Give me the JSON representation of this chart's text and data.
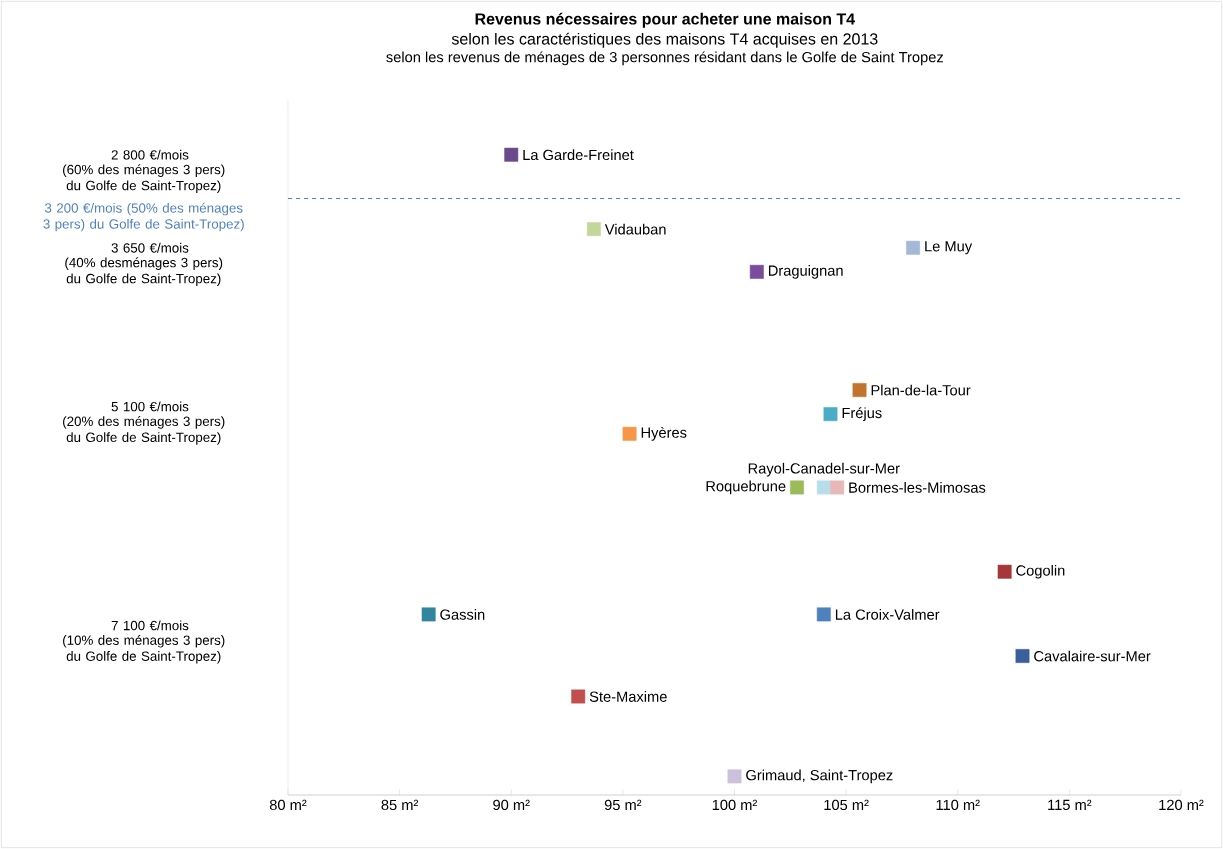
{
  "chart_data": {
    "type": "scatter",
    "title": "Revenus nécessaires pour acheter une maison T4",
    "subtitle": "selon les caractéristiques des maisons T4 acquises en 2013",
    "annotations": [
      "selon les revenus de ménages de 3 personnes résidant dans le Golfe de Saint Tropez",
      "(60% des ménages 3 pers) du Golfe de Saint-Tropez)",
      "(40% desménages 3 pers) du Golfe de Saint-Tropez)",
      "(20% des ménages 3 pers) du Golfe de Saint-Tropez)",
      "(10% des ménages 3 pers) du Golfe de Saint-Tropez)"
    ],
    "marker": "square",
    "xlim": [
      80,
      120
    ],
    "xticks": [
      {
        "value": 80,
        "label": "80 m²"
      },
      {
        "value": 85,
        "label": "85 m²"
      },
      {
        "value": 90,
        "label": "90 m²"
      },
      {
        "value": 95,
        "label": "95 m²"
      },
      {
        "value": 100,
        "label": "100 m²"
      },
      {
        "value": 105,
        "label": "105 m²"
      },
      {
        "value": 110,
        "label": "110 m²"
      },
      {
        "value": 115,
        "label": "115 m²"
      },
      {
        "value": 120,
        "label": "120 m²"
      }
    ],
    "ylim": [
      8650,
      2300
    ],
    "yticks": [
      {
        "value": 2800,
        "label": "2 800 €/mois"
      },
      {
        "value": 3650,
        "label": "3 650 €/mois"
      },
      {
        "value": 5100,
        "label": "5 100 €/mois"
      },
      {
        "value": 7100,
        "label": "7 100 €/mois"
      }
    ],
    "ref_lines": [
      {
        "axis": "y",
        "value": 3200,
        "label": "3 200 €/mois (50% des ménages 3 pers) du Golfe de Saint-Tropez)",
        "color": "#4f81bd",
        "line_style": "dashed"
      }
    ],
    "series": [
      {
        "name": "La Garde-Freinet",
        "color": "#6a4a8c",
        "x": [
          90
        ],
        "values": [
          2800
        ]
      },
      {
        "name": "Vidauban",
        "color": "#c4d79b",
        "x": [
          93.7
        ],
        "values": [
          3480
        ]
      },
      {
        "name": "Le Muy",
        "color": "#a5b8d8",
        "x": [
          108
        ],
        "values": [
          3650
        ]
      },
      {
        "name": "Draguignan",
        "color": "#7b4c9b",
        "x": [
          101
        ],
        "values": [
          3870
        ]
      },
      {
        "name": "Plan-de-la-Tour",
        "color": "#c0742e",
        "x": [
          105.6
        ],
        "values": [
          4950
        ]
      },
      {
        "name": "Fréjus",
        "color": "#4bacc6",
        "x": [
          104.3
        ],
        "values": [
          5170
        ]
      },
      {
        "name": "Hyères",
        "color": "#f79646",
        "x": [
          95.3
        ],
        "values": [
          5350
        ]
      },
      {
        "name": "Roquebrune",
        "color": "#9bbb59",
        "x": [
          102.8
        ],
        "values": [
          5840
        ]
      },
      {
        "name": "Rayol-Canadel-sur-Mer",
        "color": "#b7dee8",
        "x": [
          104.0
        ],
        "values": [
          5840
        ]
      },
      {
        "name": "Bormes-les-Mimosas",
        "color": "#e6b9b8",
        "x": [
          104.6
        ],
        "values": [
          5840
        ]
      },
      {
        "name": "Cogolin",
        "color": "#a5373a",
        "x": [
          112.1
        ],
        "values": [
          6610
        ]
      },
      {
        "name": "Gassin",
        "color": "#31859c",
        "x": [
          86.3
        ],
        "values": [
          7000
        ]
      },
      {
        "name": "La Croix-Valmer",
        "color": "#4f81bd",
        "x": [
          104.0
        ],
        "values": [
          7000
        ]
      },
      {
        "name": "Cavalaire-sur-Mer",
        "color": "#3a5f9a",
        "x": [
          112.9
        ],
        "values": [
          7380
        ]
      },
      {
        "name": "Ste-Maxime",
        "color": "#c0504d",
        "x": [
          93.0
        ],
        "values": [
          7750
        ]
      },
      {
        "name": "Grimaud, Saint-Tropez",
        "color": "#ccc0da",
        "x": [
          100.0
        ],
        "values": [
          8480
        ]
      }
    ]
  }
}
